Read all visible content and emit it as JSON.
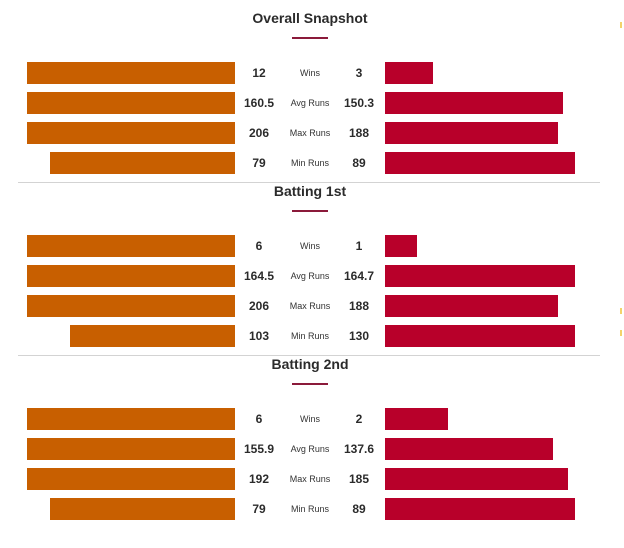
{
  "colors": {
    "left_bar": "#c85f00",
    "right_bar": "#b8002a",
    "title_underline": "#8b1a3a",
    "divider": "#d3d3d3"
  },
  "chart_data": [
    {
      "type": "bar",
      "title": "Overall Snapshot",
      "categories": [
        "Wins",
        "Avg Runs",
        "Max Runs",
        "Min Runs"
      ],
      "series": [
        {
          "values": [
            12,
            160.5,
            206,
            79
          ]
        },
        {
          "values": [
            3,
            150.3,
            188,
            89
          ]
        }
      ]
    },
    {
      "type": "bar",
      "title": "Batting 1st",
      "categories": [
        "Wins",
        "Avg Runs",
        "Max Runs",
        "Min Runs"
      ],
      "series": [
        {
          "values": [
            6,
            164.5,
            206,
            103
          ]
        },
        {
          "values": [
            1,
            164.7,
            188,
            130
          ]
        }
      ]
    },
    {
      "type": "bar",
      "title": "Batting 2nd",
      "categories": [
        "Wins",
        "Avg Runs",
        "Max Runs",
        "Min Runs"
      ],
      "series": [
        {
          "values": [
            6,
            155.9,
            192,
            79
          ]
        },
        {
          "values": [
            2,
            137.6,
            185,
            89
          ]
        }
      ]
    }
  ]
}
